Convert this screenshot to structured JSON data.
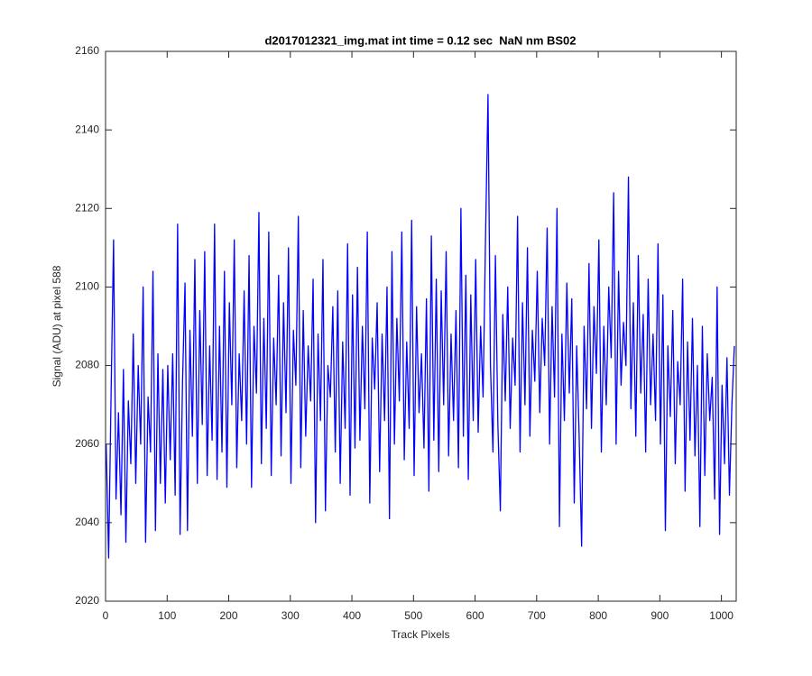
{
  "chart_data": {
    "type": "line",
    "title": "d2017012321_img.mat int time = 0.12 sec  NaN nm BS02",
    "xlabel": "Track Pixels",
    "ylabel": "Signal (ADU) at pixel 588",
    "xlim": [
      0,
      1024
    ],
    "xticks": [
      0,
      100,
      200,
      300,
      400,
      500,
      600,
      700,
      800,
      900,
      1000
    ],
    "ylim": [
      2020,
      2160
    ],
    "yticks": [
      2020,
      2040,
      2060,
      2080,
      2100,
      2120,
      2140,
      2160
    ],
    "x": [
      1,
      5,
      9,
      13,
      17,
      21,
      25,
      29,
      33,
      37,
      41,
      45,
      49,
      53,
      57,
      61,
      65,
      69,
      73,
      77,
      81,
      85,
      89,
      93,
      97,
      101,
      105,
      109,
      113,
      117,
      121,
      125,
      129,
      133,
      137,
      141,
      145,
      149,
      153,
      157,
      161,
      165,
      169,
      173,
      177,
      181,
      185,
      189,
      193,
      197,
      201,
      205,
      209,
      213,
      217,
      221,
      225,
      229,
      233,
      237,
      241,
      245,
      249,
      253,
      257,
      261,
      265,
      269,
      273,
      277,
      281,
      285,
      289,
      293,
      297,
      301,
      305,
      309,
      313,
      317,
      321,
      325,
      329,
      333,
      337,
      341,
      345,
      349,
      353,
      357,
      361,
      365,
      369,
      373,
      377,
      381,
      385,
      389,
      393,
      397,
      401,
      405,
      409,
      413,
      417,
      421,
      425,
      429,
      433,
      437,
      441,
      445,
      449,
      453,
      457,
      461,
      465,
      469,
      473,
      477,
      481,
      485,
      489,
      493,
      497,
      501,
      505,
      509,
      513,
      517,
      521,
      525,
      529,
      533,
      537,
      541,
      545,
      549,
      553,
      557,
      561,
      565,
      569,
      573,
      577,
      581,
      585,
      589,
      593,
      597,
      601,
      605,
      609,
      613,
      617,
      621,
      625,
      629,
      633,
      637,
      641,
      645,
      649,
      653,
      657,
      661,
      665,
      669,
      673,
      677,
      681,
      685,
      689,
      693,
      697,
      701,
      705,
      709,
      713,
      717,
      721,
      725,
      729,
      733,
      737,
      741,
      745,
      749,
      753,
      757,
      761,
      765,
      769,
      773,
      777,
      781,
      785,
      789,
      793,
      797,
      801,
      805,
      809,
      813,
      817,
      821,
      825,
      829,
      833,
      837,
      841,
      845,
      849,
      853,
      857,
      861,
      865,
      869,
      873,
      877,
      881,
      885,
      889,
      893,
      897,
      901,
      905,
      909,
      913,
      917,
      921,
      925,
      929,
      933,
      937,
      941,
      945,
      949,
      953,
      957,
      961,
      965,
      969,
      973,
      977,
      981,
      985,
      989,
      993,
      997,
      1001,
      1005,
      1009,
      1013,
      1017,
      1021
    ],
    "series": [
      {
        "color": "#0000ff",
        "values": [
          2060,
          2031,
          2073,
          2112,
          2046,
          2068,
          2042,
          2079,
          2035,
          2071,
          2055,
          2088,
          2050,
          2080,
          2060,
          2100,
          2035,
          2072,
          2058,
          2104,
          2038,
          2083,
          2050,
          2079,
          2045,
          2080,
          2056,
          2083,
          2047,
          2116,
          2037,
          2076,
          2101,
          2038,
          2089,
          2062,
          2107,
          2050,
          2094,
          2065,
          2109,
          2052,
          2085,
          2061,
          2116,
          2051,
          2090,
          2058,
          2104,
          2049,
          2096,
          2070,
          2112,
          2054,
          2083,
          2066,
          2099,
          2060,
          2108,
          2049,
          2090,
          2073,
          2119,
          2055,
          2092,
          2064,
          2114,
          2052,
          2087,
          2070,
          2103,
          2057,
          2096,
          2068,
          2110,
          2050,
          2089,
          2075,
          2118,
          2054,
          2094,
          2062,
          2085,
          2071,
          2102,
          2040,
          2088,
          2066,
          2107,
          2043,
          2080,
          2072,
          2095,
          2058,
          2099,
          2050,
          2086,
          2064,
          2111,
          2047,
          2098,
          2059,
          2105,
          2061,
          2090,
          2069,
          2114,
          2045,
          2087,
          2074,
          2096,
          2053,
          2088,
          2066,
          2100,
          2041,
          2109,
          2060,
          2092,
          2071,
          2114,
          2056,
          2086,
          2064,
          2117,
          2052,
          2095,
          2068,
          2083,
          2059,
          2097,
          2048,
          2113,
          2061,
          2102,
          2053,
          2099,
          2070,
          2109,
          2057,
          2088,
          2066,
          2094,
          2054,
          2120,
          2062,
          2103,
          2051,
          2098,
          2066,
          2107,
          2063,
          2090,
          2072,
          2113,
          2149,
          2080,
          2058,
          2108,
          2065,
          2043,
          2093,
          2071,
          2100,
          2064,
          2087,
          2075,
          2118,
          2058,
          2096,
          2070,
          2110,
          2062,
          2089,
          2076,
          2104,
          2068,
          2092,
          2080,
          2115,
          2060,
          2095,
          2072,
          2120,
          2039,
          2088,
          2066,
          2101,
          2073,
          2097,
          2045,
          2085,
          2062,
          2034,
          2090,
          2069,
          2106,
          2064,
          2095,
          2078,
          2112,
          2058,
          2090,
          2070,
          2100,
          2082,
          2124,
          2060,
          2104,
          2075,
          2091,
          2080,
          2128,
          2069,
          2096,
          2062,
          2108,
          2073,
          2093,
          2058,
          2102,
          2070,
          2088,
          2066,
          2111,
          2060,
          2098,
          2038,
          2085,
          2067,
          2094,
          2055,
          2081,
          2070,
          2102,
          2048,
          2086,
          2061,
          2092,
          2057,
          2080,
          2039,
          2090,
          2052,
          2083,
          2066,
          2077,
          2046,
          2100,
          2037,
          2075,
          2055,
          2082,
          2047,
          2070,
          2085
        ]
      }
    ]
  }
}
